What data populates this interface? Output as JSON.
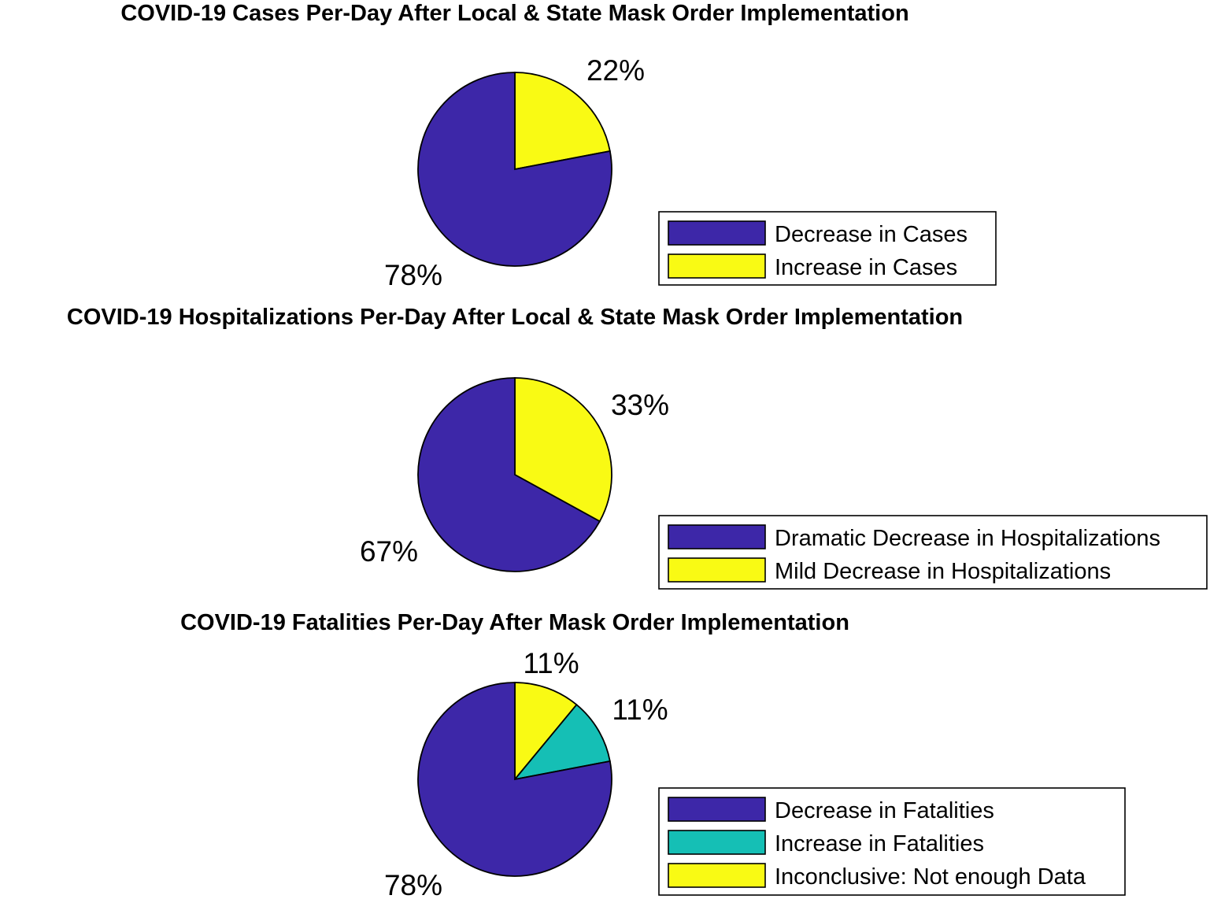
{
  "chart_data": [
    {
      "type": "pie",
      "title": "COVID-19 Cases Per-Day After Local & State Mask Order Implementation",
      "slices": [
        {
          "name": "Decrease in Cases",
          "value": 78,
          "label": "78%",
          "color": "#3D27A8"
        },
        {
          "name": "Increase in Cases",
          "value": 22,
          "label": "22%",
          "color": "#F9FA14"
        }
      ],
      "legend": {
        "placement": "right"
      }
    },
    {
      "type": "pie",
      "title": "COVID-19 Hospitalizations Per-Day After Local & State Mask Order Implementation",
      "slices": [
        {
          "name": "Dramatic Decrease in Hospitalizations",
          "value": 67,
          "label": "67%",
          "color": "#3D27A8"
        },
        {
          "name": "Mild Decrease in Hospitalizations",
          "value": 33,
          "label": "33%",
          "color": "#F9FA14"
        }
      ],
      "legend": {
        "placement": "right"
      }
    },
    {
      "type": "pie",
      "title": "COVID-19 Fatalities Per-Day After Mask Order Implementation",
      "slices": [
        {
          "name": "Decrease in Fatalities",
          "value": 78,
          "label": "78%",
          "color": "#3D27A8"
        },
        {
          "name": "Increase in Fatalities",
          "value": 11,
          "label": "11%",
          "color": "#15BFB5"
        },
        {
          "name": "Inconclusive: Not enough Data",
          "value": 11,
          "label": "11%",
          "color": "#F9FA14"
        }
      ],
      "legend": {
        "placement": "right"
      }
    }
  ]
}
